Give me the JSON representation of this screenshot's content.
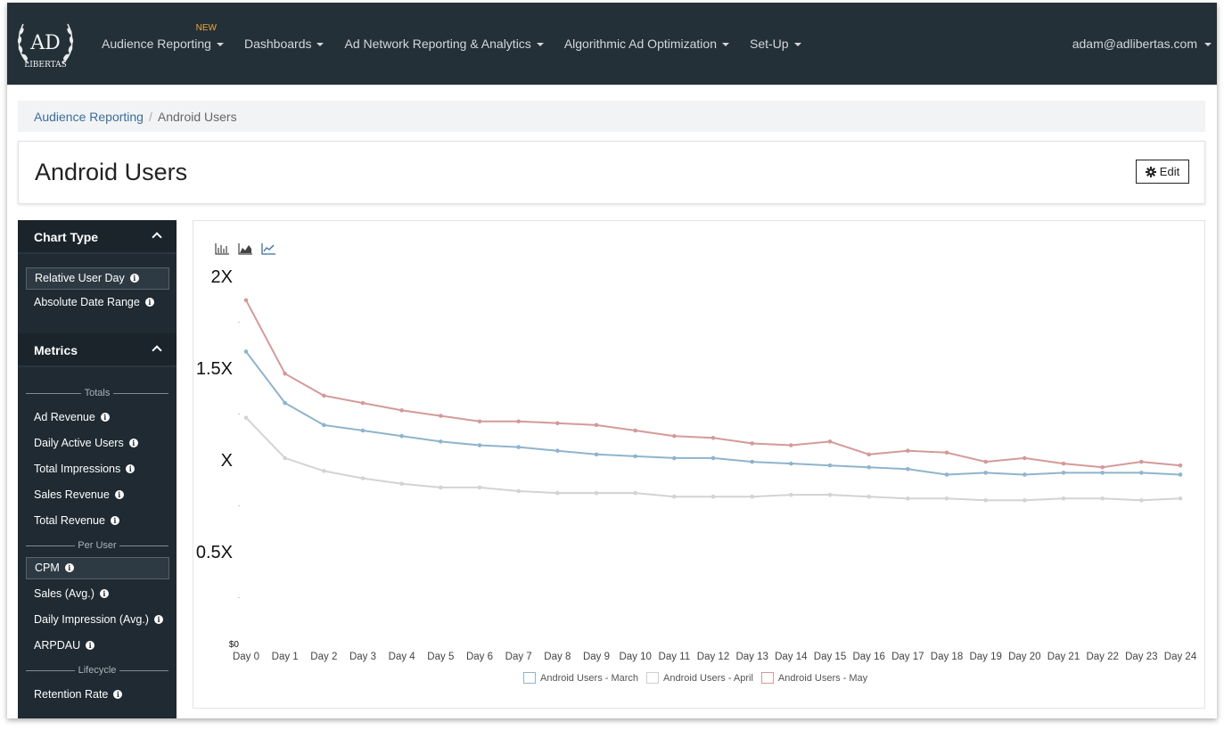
{
  "nav": {
    "logo_alt": "AD LIBERTAS",
    "items": [
      {
        "label": "Audience Reporting",
        "badge": "NEW"
      },
      {
        "label": "Dashboards"
      },
      {
        "label": "Ad Network Reporting & Analytics"
      },
      {
        "label": "Algorithmic Ad Optimization"
      },
      {
        "label": "Set-Up"
      }
    ],
    "user": "adam@adlibertas.com"
  },
  "breadcrumb": {
    "parent": "Audience Reporting",
    "separator": "/",
    "current": "Android Users"
  },
  "page": {
    "title": "Android Users",
    "edit_label": "Edit"
  },
  "sidebar": {
    "chart_type_header": "Chart Type",
    "chart_types": [
      "Relative User Day",
      "Absolute Date Range"
    ],
    "metrics_header": "Metrics",
    "groups": {
      "totals": "Totals",
      "per_user": "Per User",
      "lifecycle": "Lifecycle"
    },
    "totals_items": [
      "Ad Revenue",
      "Daily Active Users",
      "Total Impressions",
      "Sales Revenue",
      "Total Revenue"
    ],
    "per_user_items": [
      "CPM",
      "Sales (Avg.)",
      "Daily Impression (Avg.)",
      "ARPDAU"
    ],
    "lifecycle_items": [
      "Retention Rate"
    ]
  },
  "chart_toolbar": {
    "icons": [
      "bar-chart-icon",
      "area-chart-icon",
      "line-chart-icon"
    ]
  },
  "chart_data": {
    "type": "line",
    "y_tick_labels": [
      "2X",
      "1.5X",
      "X",
      "0.5X",
      "$0"
    ],
    "ylim": [
      0,
      2
    ],
    "x": [
      "Day 0",
      "Day 1",
      "Day 2",
      "Day 3",
      "Day 4",
      "Day 5",
      "Day 6",
      "Day 7",
      "Day 8",
      "Day 9",
      "Day 10",
      "Day 11",
      "Day 12",
      "Day 13",
      "Day 14",
      "Day 15",
      "Day 16",
      "Day 17",
      "Day 18",
      "Day 19",
      "Day 20",
      "Day 21",
      "Day 22",
      "Day 23",
      "Day 24"
    ],
    "grid": false,
    "legend_position": "bottom",
    "series": [
      {
        "name": "Android Users - March",
        "color": "#8fb4cc",
        "values": [
          1.59,
          1.31,
          1.19,
          1.16,
          1.13,
          1.1,
          1.08,
          1.07,
          1.05,
          1.03,
          1.02,
          1.01,
          1.01,
          0.99,
          0.98,
          0.97,
          0.96,
          0.95,
          0.92,
          0.93,
          0.92,
          0.93,
          0.93,
          0.93,
          0.92
        ]
      },
      {
        "name": "Android Users - April",
        "color": "#d3d3d3",
        "values": [
          1.23,
          1.01,
          0.94,
          0.9,
          0.87,
          0.85,
          0.85,
          0.83,
          0.82,
          0.82,
          0.82,
          0.8,
          0.8,
          0.8,
          0.81,
          0.81,
          0.8,
          0.79,
          0.79,
          0.78,
          0.78,
          0.79,
          0.79,
          0.78,
          0.79
        ]
      },
      {
        "name": "Android Users - May",
        "color": "#d49a9a",
        "values": [
          1.87,
          1.47,
          1.35,
          1.31,
          1.27,
          1.24,
          1.21,
          1.21,
          1.2,
          1.19,
          1.16,
          1.13,
          1.12,
          1.09,
          1.08,
          1.1,
          1.03,
          1.05,
          1.04,
          0.99,
          1.01,
          0.98,
          0.96,
          0.99,
          0.97
        ]
      }
    ]
  }
}
